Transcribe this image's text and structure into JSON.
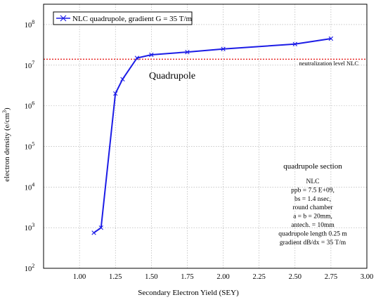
{
  "chart_data": {
    "type": "line",
    "xlabel": "Secondary Electron Yield (SEY)",
    "ylabel": "electron density (e/cm",
    "ylabel_exponent": "3",
    "ylabel_close": ")",
    "xlim": [
      0.75,
      3.0
    ],
    "ylim_log10": [
      2,
      8.5
    ],
    "y_scale": "log",
    "grid": true,
    "x_ticks": [
      {
        "value": 1.0,
        "label": "1.00"
      },
      {
        "value": 1.25,
        "label": "1.25"
      },
      {
        "value": 1.5,
        "label": "1.50"
      },
      {
        "value": 1.75,
        "label": "1.75"
      },
      {
        "value": 2.0,
        "label": "2.00"
      },
      {
        "value": 2.25,
        "label": "2.25"
      },
      {
        "value": 2.5,
        "label": "2.50"
      },
      {
        "value": 2.75,
        "label": "2.75"
      },
      {
        "value": 3.0,
        "label": "3.00"
      }
    ],
    "y_ticks": [
      {
        "exp": 2,
        "base": "10",
        "sup": "2"
      },
      {
        "exp": 3,
        "base": "10",
        "sup": "3"
      },
      {
        "exp": 4,
        "base": "10",
        "sup": "4"
      },
      {
        "exp": 5,
        "base": "10",
        "sup": "5"
      },
      {
        "exp": 6,
        "base": "10",
        "sup": "6"
      },
      {
        "exp": 7,
        "base": "10",
        "sup": "7"
      },
      {
        "exp": 8,
        "base": "10",
        "sup": "8"
      }
    ],
    "series": [
      {
        "name": "NLC quadrupole, gradient G = 35 T/m",
        "color": "#1c1ce6",
        "marker": "x",
        "x": [
          1.1,
          1.15,
          1.25,
          1.3,
          1.4,
          1.5,
          1.75,
          2.0,
          2.5,
          2.75
        ],
        "y": [
          750,
          1000,
          2000000,
          4500000,
          15000000,
          18000000,
          21000000,
          25000000,
          33000000,
          45000000
        ]
      }
    ],
    "reference_line": {
      "value": 14000000,
      "color": "#e8211f",
      "label": "neutralization level NLC"
    },
    "legend_placement": "top-left",
    "annotations": {
      "title_label": "Quadrupole",
      "section_title": "quadrupole section",
      "params": [
        {
          "text": "NLC",
          "color": "#000000"
        },
        {
          "text": "ppb = 7.5 E+09,",
          "color": "#000000"
        },
        {
          "text": "bs = 1.4 nsec,",
          "color": "#000000"
        },
        {
          "text": "round chamber",
          "color": "#000000"
        },
        {
          "text": "a = b = 20mm,",
          "color": "#e8211f"
        },
        {
          "text": "antech. = 10mm",
          "color": "#000000"
        },
        {
          "text": "quadrupole length 0.25 m",
          "color": "#000000"
        },
        {
          "text": "gradient dB/dx = 35 T/m",
          "color": "#000000"
        }
      ]
    }
  }
}
